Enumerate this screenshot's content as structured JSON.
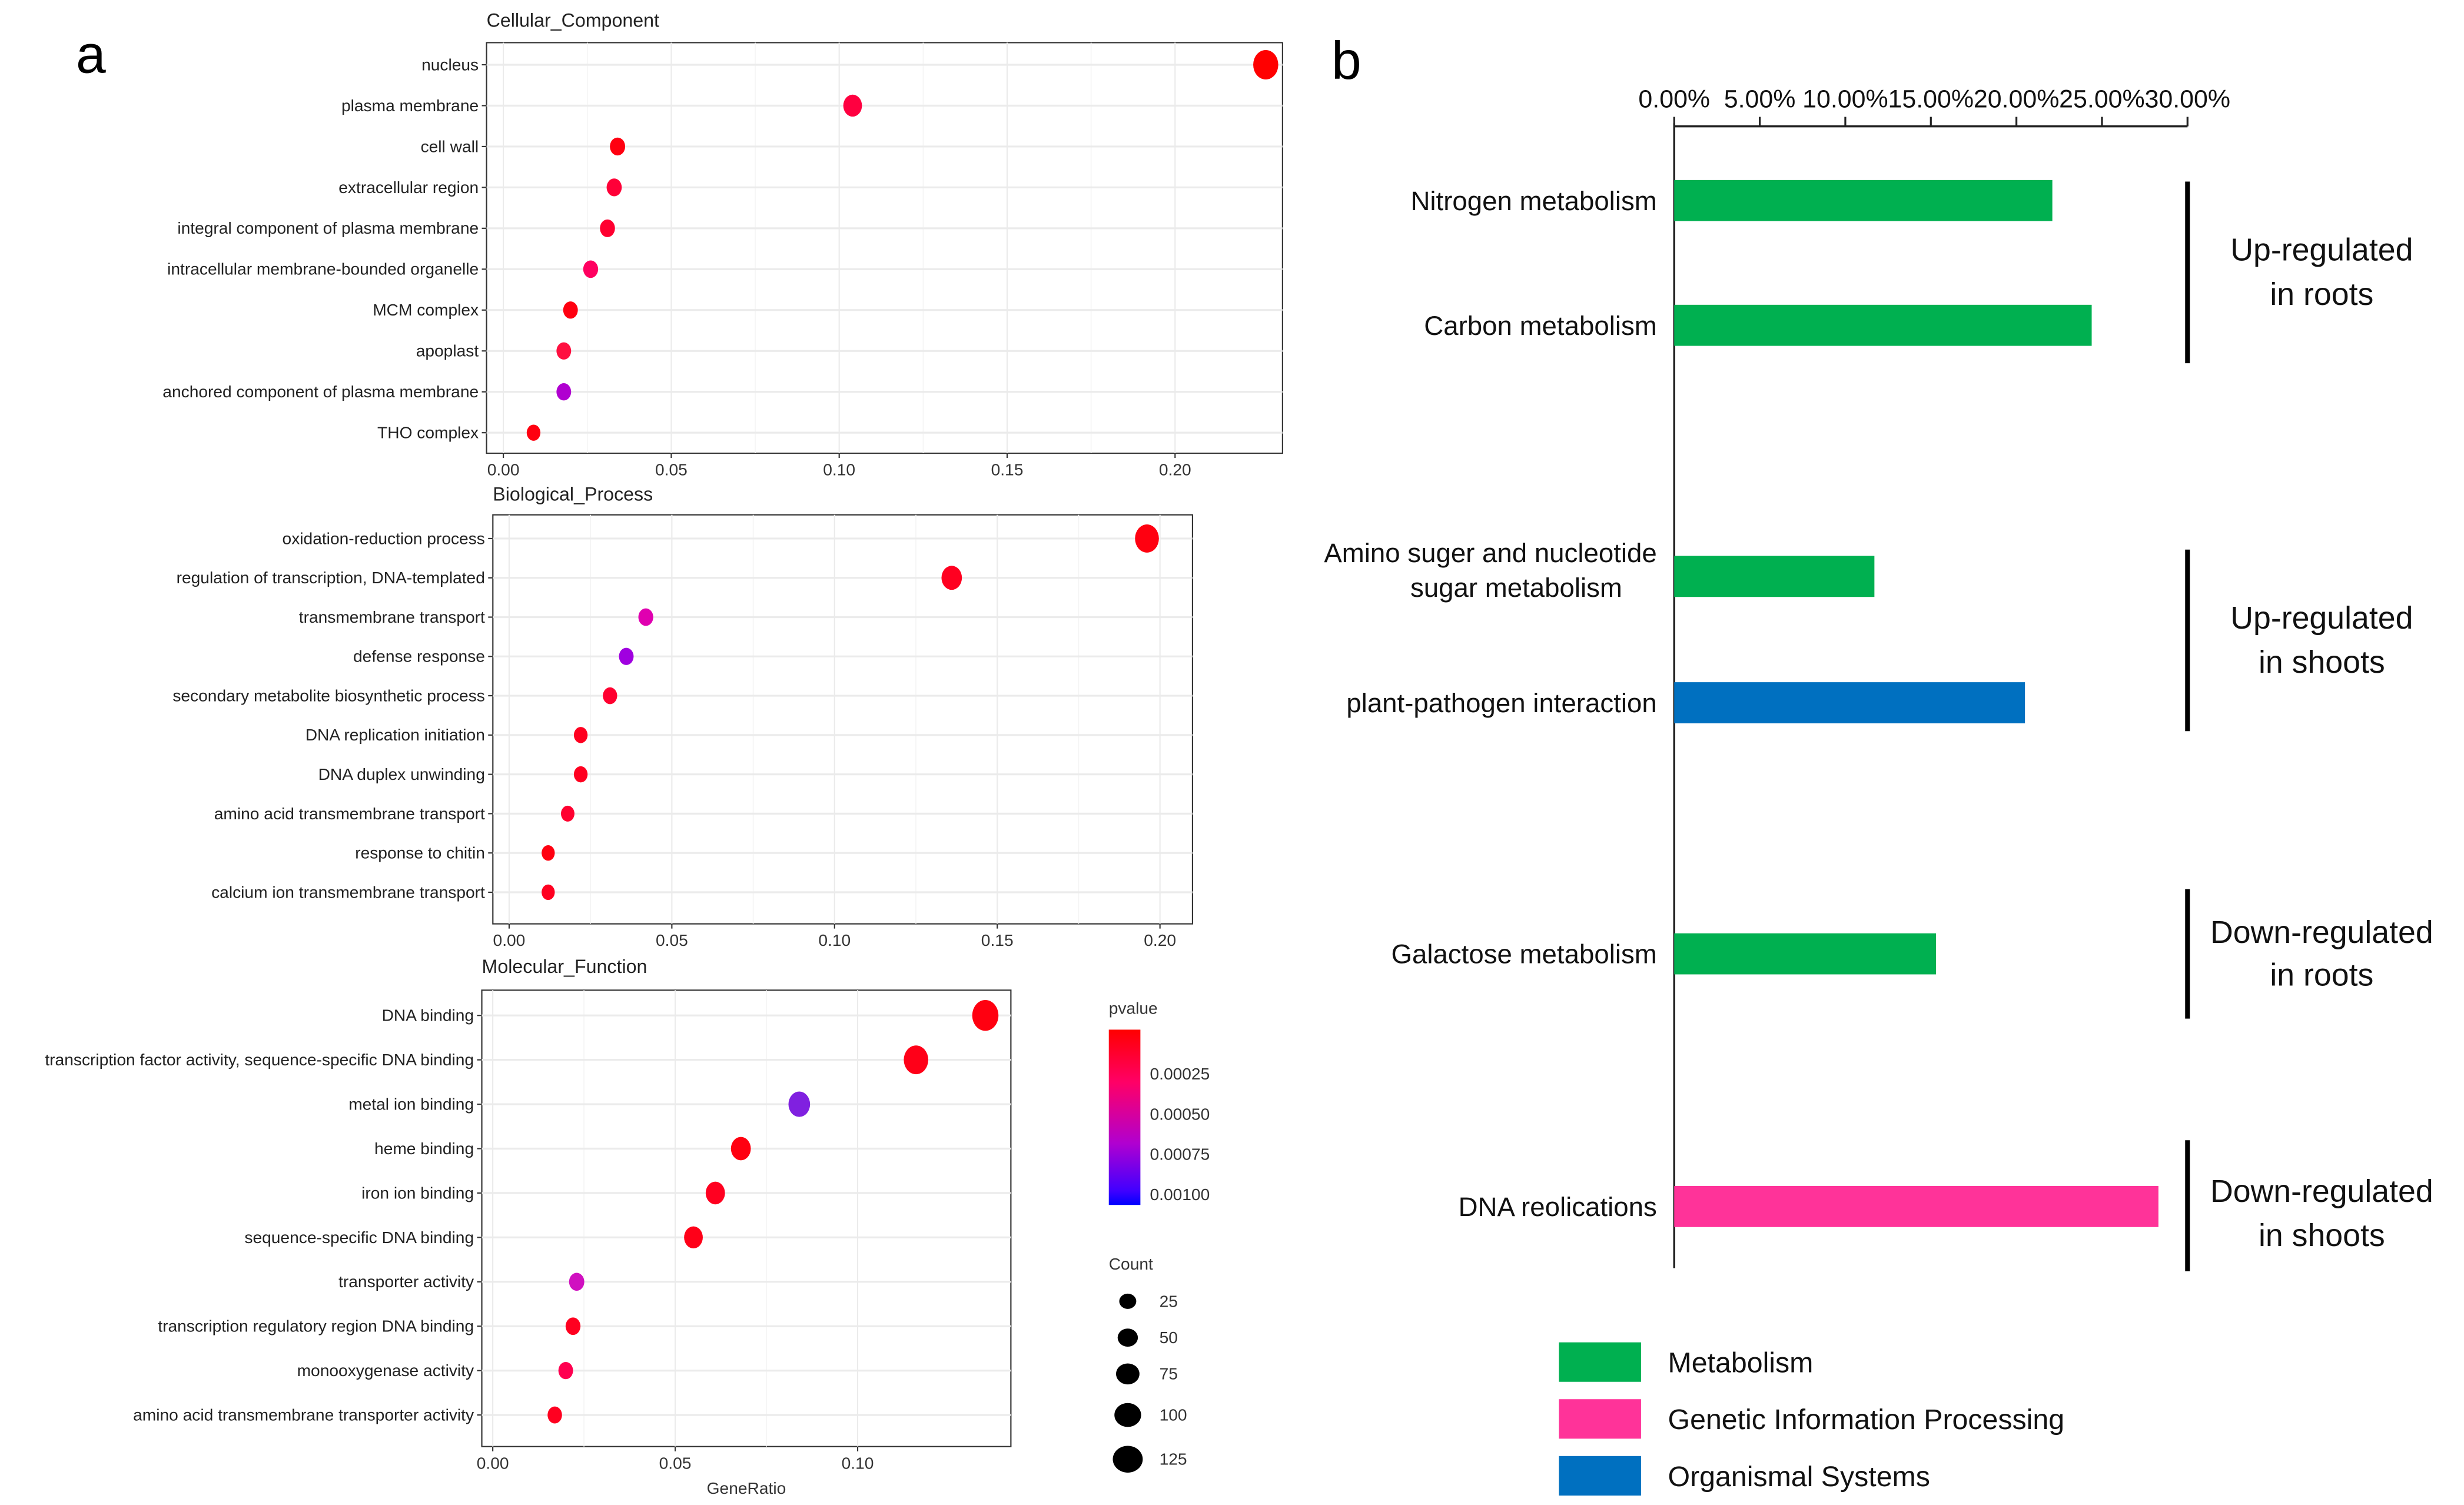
{
  "panel_labels": {
    "a": "a",
    "b": "b"
  },
  "chart_data": [
    {
      "type": "scatter",
      "title": "Cellular_Component",
      "xlabel": "",
      "xlim": [
        -0.005,
        0.232
      ],
      "xticks": [
        "0.00",
        "0.05",
        "0.10",
        "0.15",
        "0.20"
      ],
      "tickvals": [
        0,
        0.05,
        0.1,
        0.15,
        0.2
      ],
      "terms": [
        {
          "name": "nucleus",
          "ratio": 0.227,
          "count": 110,
          "color": "#ff0000"
        },
        {
          "name": "plasma membrane",
          "ratio": 0.104,
          "count": 55,
          "color": "#ff0040"
        },
        {
          "name": "cell wall",
          "ratio": 0.034,
          "count": 25,
          "color": "#ff0010"
        },
        {
          "name": "extracellular region",
          "ratio": 0.033,
          "count": 24,
          "color": "#ff0038"
        },
        {
          "name": "integral component of plasma membrane",
          "ratio": 0.031,
          "count": 23,
          "color": "#ff0030"
        },
        {
          "name": "intracellular membrane-bounded organelle",
          "ratio": 0.026,
          "count": 22,
          "color": "#ff0060"
        },
        {
          "name": "MCM complex",
          "ratio": 0.02,
          "count": 20,
          "color": "#ff0010"
        },
        {
          "name": "apoplast",
          "ratio": 0.018,
          "count": 20,
          "color": "#ff1040"
        },
        {
          "name": "anchored component of plasma membrane",
          "ratio": 0.018,
          "count": 20,
          "color": "#b000d0"
        },
        {
          "name": "THO complex",
          "ratio": 0.009,
          "count": 12,
          "color": "#ff0010"
        }
      ]
    },
    {
      "type": "scatter",
      "title": "Biological_Process",
      "xlabel": "",
      "xlim": [
        -0.005,
        0.21
      ],
      "xticks": [
        "0.00",
        "0.05",
        "0.10",
        "0.15",
        "0.20"
      ],
      "tickvals": [
        0,
        0.05,
        0.1,
        0.15,
        0.2
      ],
      "terms": [
        {
          "name": "oxidation-reduction process",
          "ratio": 0.196,
          "count": 100,
          "color": "#ff0010"
        },
        {
          "name": "regulation of transcription, DNA-templated",
          "ratio": 0.136,
          "count": 70,
          "color": "#ff0020"
        },
        {
          "name": "transmembrane transport",
          "ratio": 0.042,
          "count": 22,
          "color": "#e000b0"
        },
        {
          "name": "defense response",
          "ratio": 0.036,
          "count": 20,
          "color": "#a000e0"
        },
        {
          "name": "secondary metabolite biosynthetic process",
          "ratio": 0.031,
          "count": 17,
          "color": "#ff0030"
        },
        {
          "name": "DNA replication initiation",
          "ratio": 0.022,
          "count": 12,
          "color": "#ff0020"
        },
        {
          "name": "DNA duplex unwinding",
          "ratio": 0.022,
          "count": 12,
          "color": "#ff0020"
        },
        {
          "name": "amino acid transmembrane transport",
          "ratio": 0.018,
          "count": 10,
          "color": "#ff0030"
        },
        {
          "name": "response to chitin",
          "ratio": 0.012,
          "count": 7,
          "color": "#ff0010"
        },
        {
          "name": "calcium ion transmembrane transport",
          "ratio": 0.012,
          "count": 7,
          "color": "#ff0020"
        }
      ]
    },
    {
      "type": "scatter",
      "title": "Molecular_Function",
      "xlabel": "GeneRatio",
      "xlim": [
        -0.003,
        0.142
      ],
      "xticks": [
        "0.00",
        "0.05",
        "0.10"
      ],
      "tickvals": [
        0,
        0.05,
        0.1
      ],
      "terms": [
        {
          "name": "DNA binding",
          "ratio": 0.135,
          "count": 120,
          "color": "#ff0010"
        },
        {
          "name": "transcription factor activity, sequence-specific DNA binding",
          "ratio": 0.116,
          "count": 105,
          "color": "#ff0018"
        },
        {
          "name": "metal ion binding",
          "ratio": 0.084,
          "count": 80,
          "color": "#8020e0"
        },
        {
          "name": "heme binding",
          "ratio": 0.068,
          "count": 65,
          "color": "#ff0010"
        },
        {
          "name": "iron ion binding",
          "ratio": 0.061,
          "count": 60,
          "color": "#ff0020"
        },
        {
          "name": "sequence-specific DNA binding",
          "ratio": 0.055,
          "count": 55,
          "color": "#ff0018"
        },
        {
          "name": "transporter activity",
          "ratio": 0.023,
          "count": 25,
          "color": "#d010c0"
        },
        {
          "name": "transcription regulatory region DNA binding",
          "ratio": 0.022,
          "count": 22,
          "color": "#ff0020"
        },
        {
          "name": "monooxygenase activity",
          "ratio": 0.02,
          "count": 20,
          "color": "#ff0050"
        },
        {
          "name": "amino acid transmembrane transporter activity",
          "ratio": 0.017,
          "count": 18,
          "color": "#ff0020"
        }
      ]
    },
    {
      "type": "bar",
      "orientation": "horizontal",
      "xlim": [
        0,
        30
      ],
      "xticks": [
        "0.00%",
        "5.00%",
        "10.00%",
        "15.00%",
        "20.00%",
        "25.00%",
        "30.00%"
      ],
      "categories": [
        {
          "lines": [
            "Nitrogen metabolism"
          ],
          "value": 22.1,
          "category": "Metabolism"
        },
        {
          "lines": [
            "Carbon metabolism"
          ],
          "value": 24.4,
          "category": "Metabolism"
        },
        {
          "lines": [
            "Amino suger and nucleotide",
            "sugar metabolism"
          ],
          "value": 11.7,
          "category": "Metabolism"
        },
        {
          "lines": [
            "plant-pathogen interaction"
          ],
          "value": 20.5,
          "category": "Organismal Systems"
        },
        {
          "lines": [
            "Galactose metabolism"
          ],
          "value": 15.3,
          "category": "Metabolism"
        },
        {
          "lines": [
            "DNA reolications"
          ],
          "value": 28.3,
          "category": "Genetic Information Processing"
        }
      ],
      "groups": [
        {
          "lines": [
            "Up-regulated",
            "in roots"
          ]
        },
        {
          "lines": [
            "Up-regulated",
            "in shoots"
          ]
        },
        {
          "lines": [
            "Down-regulated",
            "in roots"
          ]
        },
        {
          "lines": [
            "Down-regulated",
            "in shoots"
          ]
        }
      ],
      "legend": [
        {
          "label": "Metabolism",
          "color": "#00b050"
        },
        {
          "label": "Genetic Information Processing",
          "color": "#ff3399"
        },
        {
          "label": "Organismal Systems",
          "color": "#0070c0"
        }
      ]
    }
  ],
  "legend_a": {
    "pvalue_title": "pvalue",
    "pvalue_ticks": [
      "0.00025",
      "0.00050",
      "0.00075",
      "0.00100"
    ],
    "gradient": [
      "#ff0000",
      "#ff0066",
      "#c000c0",
      "#0000ff"
    ],
    "count_title": "Count",
    "counts": [
      25,
      50,
      75,
      100,
      125
    ]
  }
}
